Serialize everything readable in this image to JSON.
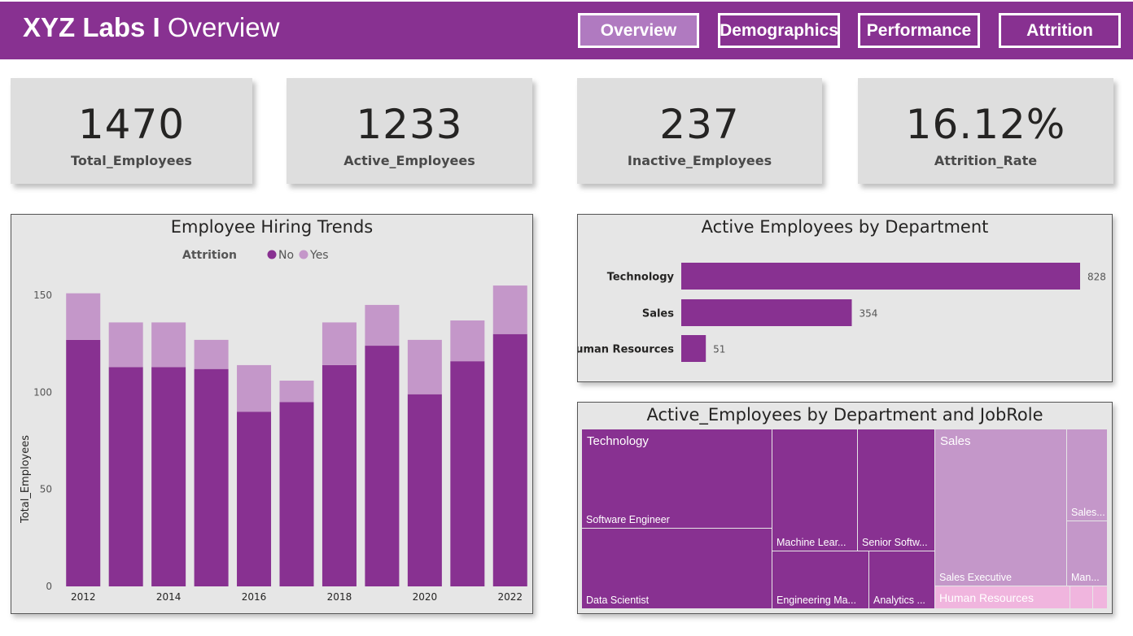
{
  "header": {
    "brand": "XYZ Labs I",
    "subtitle": "Overview",
    "tabs": [
      {
        "label": "Overview",
        "active": true
      },
      {
        "label": "Demographics",
        "active": false
      },
      {
        "label": "Performance",
        "active": false
      },
      {
        "label": "Attrition",
        "active": false
      }
    ]
  },
  "kpis": [
    {
      "value": "1470",
      "label": "Total_Employees"
    },
    {
      "value": "1233",
      "label": "Active_Employees"
    },
    {
      "value": "237",
      "label": "Inactive_Employees"
    },
    {
      "value": "16.12%",
      "label": "Attrition_Rate"
    }
  ],
  "colors": {
    "primary": "#883191",
    "light": "#c497c9",
    "pink": "#f0b5de",
    "panel_bg": "#e6e6e6"
  },
  "chart_data": [
    {
      "type": "bar",
      "stacked": true,
      "title": "Employee Hiring Trends",
      "legend_title": "Attrition",
      "legend_position": "top-center",
      "xlabel": "",
      "ylabel": "Total_Employees",
      "categories": [
        "2012",
        "2013",
        "2014",
        "2015",
        "2016",
        "2017",
        "2018",
        "2019",
        "2020",
        "2021",
        "2022"
      ],
      "x_tick_labels": [
        "2012",
        "",
        "2014",
        "",
        "2016",
        "",
        "2018",
        "",
        "2020",
        "",
        "2022"
      ],
      "y_ticks": [
        0,
        50,
        100,
        150
      ],
      "ylim": [
        0,
        160
      ],
      "series": [
        {
          "name": "No",
          "color": "#883191",
          "values": [
            127,
            113,
            113,
            112,
            90,
            95,
            114,
            124,
            99,
            116,
            130
          ]
        },
        {
          "name": "Yes",
          "color": "#c497c9",
          "values": [
            24,
            23,
            23,
            15,
            24,
            11,
            22,
            21,
            28,
            21,
            25
          ]
        }
      ]
    },
    {
      "type": "bar",
      "orientation": "horizontal",
      "title": "Active Employees by Department",
      "categories": [
        "Technology",
        "Sales",
        "Human Resources"
      ],
      "values": [
        828,
        354,
        51
      ],
      "data_labels": [
        "828",
        "354",
        "51"
      ],
      "xlim": [
        0,
        828
      ],
      "color": "#883191"
    },
    {
      "type": "treemap",
      "title": "Active_Employees by Department and JobRole",
      "groups": [
        {
          "name": "Technology",
          "color": "#883191",
          "roles": [
            "Software Engineer",
            "Data Scientist",
            "Machine Lear...",
            "Engineering Ma...",
            "Senior Softw...",
            "Analytics ..."
          ]
        },
        {
          "name": "Sales",
          "color": "#c497c9",
          "roles": [
            "Sales Executive",
            "Sales...",
            "Man..."
          ]
        },
        {
          "name": "Human Resources",
          "color": "#f0b5de",
          "roles": []
        }
      ]
    }
  ]
}
